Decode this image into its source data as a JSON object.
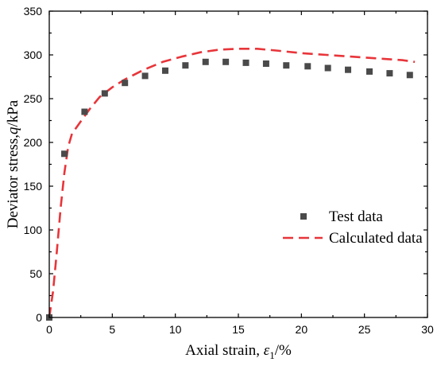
{
  "chart_data": {
    "type": "scatter",
    "xlabel_prefix": "Axial strain, ",
    "xlabel_symbol": "ε",
    "xlabel_subscript": "1",
    "xlabel_suffix": "/%",
    "ylabel_prefix": "Deviator stress,",
    "ylabel_symbol": "q",
    "ylabel_suffix": "/kPa",
    "xlim": [
      0,
      30
    ],
    "ylim": [
      0,
      350
    ],
    "xticks": [
      0,
      5,
      10,
      15,
      20,
      25,
      30
    ],
    "yticks": [
      0,
      50,
      100,
      150,
      200,
      250,
      300,
      350
    ],
    "grid": false,
    "legend_position": "center-right",
    "series": [
      {
        "name": "Test data",
        "kind": "markers",
        "marker": "square",
        "color": "#4a4a4a",
        "x": [
          0,
          1.2,
          2.8,
          4.4,
          6.0,
          7.6,
          9.2,
          10.8,
          12.4,
          14.0,
          15.6,
          17.2,
          18.8,
          20.5,
          22.1,
          23.7,
          25.4,
          27.0,
          28.6
        ],
        "y": [
          0,
          187,
          235,
          256,
          268,
          276,
          282,
          288,
          292,
          292,
          291,
          290,
          288,
          287,
          285,
          283,
          281,
          279,
          277
        ]
      },
      {
        "name": "Calculated data",
        "kind": "line",
        "dash": "dashed",
        "color": "#e8353a",
        "x": [
          0,
          0.3,
          0.6,
          0.9,
          1.2,
          1.5,
          1.8,
          2.2,
          2.7,
          3.2,
          4.0,
          5.0,
          6.0,
          7.5,
          9.0,
          10.5,
          12.0,
          13.5,
          15.0,
          16.5,
          18.0,
          20.0,
          22.0,
          24.0,
          26.0,
          28.0,
          29.0
        ],
        "y": [
          0,
          30,
          75,
          125,
          165,
          195,
          210,
          218,
          228,
          238,
          252,
          263,
          272,
          283,
          292,
          298,
          303,
          306,
          307,
          307,
          305,
          302,
          300,
          298,
          296,
          294,
          292
        ]
      }
    ]
  }
}
